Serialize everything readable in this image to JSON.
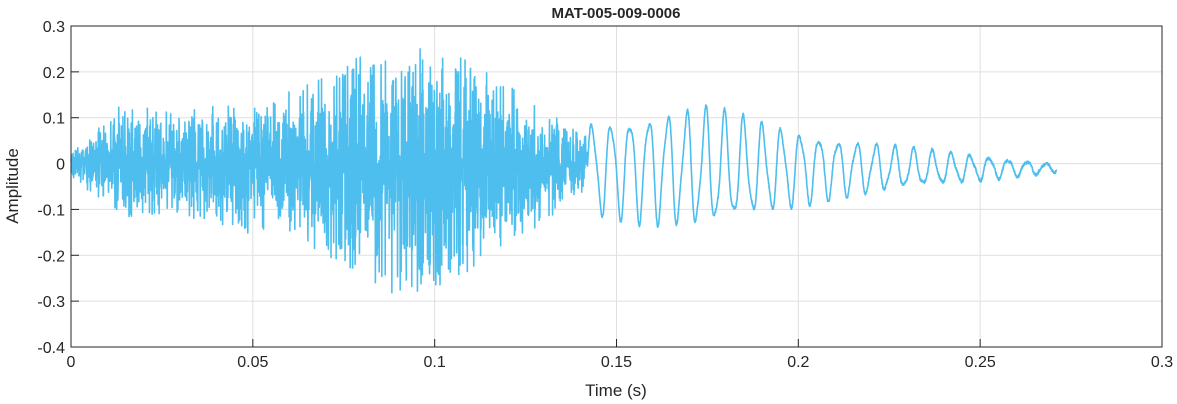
{
  "chart_data": {
    "type": "line",
    "title": "MAT-005-009-0006",
    "xlabel": "Time (s)",
    "ylabel": "Amplitude",
    "xlim": [
      0,
      0.3
    ],
    "ylim": [
      -0.4,
      0.3
    ],
    "xticks": [
      0,
      0.05,
      0.1,
      0.15,
      0.2,
      0.25,
      0.3
    ],
    "xtick_labels": [
      "0",
      "0.05",
      "0.1",
      "0.15",
      "0.2",
      "0.25",
      "0.3"
    ],
    "yticks": [
      -0.4,
      -0.3,
      -0.2,
      -0.1,
      0,
      0.1,
      0.2,
      0.3
    ],
    "ytick_labels": [
      "-0.4",
      "-0.3",
      "-0.2",
      "-0.1",
      "0",
      "0.1",
      "0.2",
      "0.3"
    ],
    "grid": true,
    "line_color": "#4DBEEE",
    "series": [
      {
        "values_description_free": true,
        "t_end": 0.271,
        "envelope": [
          {
            "t": 0.0,
            "pos": 0.03,
            "neg": -0.03
          },
          {
            "t": 0.008,
            "pos": 0.08,
            "neg": -0.08
          },
          {
            "t": 0.015,
            "pos": 0.14,
            "neg": -0.12
          },
          {
            "t": 0.03,
            "pos": 0.12,
            "neg": -0.11
          },
          {
            "t": 0.045,
            "pos": 0.13,
            "neg": -0.15
          },
          {
            "t": 0.06,
            "pos": 0.16,
            "neg": -0.16
          },
          {
            "t": 0.075,
            "pos": 0.22,
            "neg": -0.22
          },
          {
            "t": 0.09,
            "pos": 0.27,
            "neg": -0.3
          },
          {
            "t": 0.1,
            "pos": 0.26,
            "neg": -0.29
          },
          {
            "t": 0.115,
            "pos": 0.2,
            "neg": -0.2
          },
          {
            "t": 0.13,
            "pos": 0.12,
            "neg": -0.13
          },
          {
            "t": 0.142,
            "pos": 0.06,
            "neg": -0.06
          }
        ],
        "oscillation": [
          {
            "t": 0.142,
            "amp": 0.09
          },
          {
            "t": 0.16,
            "amp": 0.11
          },
          {
            "t": 0.175,
            "amp": 0.12
          },
          {
            "t": 0.19,
            "amp": 0.09
          },
          {
            "t": 0.21,
            "amp": 0.06
          },
          {
            "t": 0.23,
            "amp": 0.04
          },
          {
            "t": 0.25,
            "amp": 0.025
          },
          {
            "t": 0.271,
            "amp": 0.008
          }
        ],
        "oscillation_offset": -0.01,
        "oscillation_period": 0.0052
      }
    ]
  }
}
